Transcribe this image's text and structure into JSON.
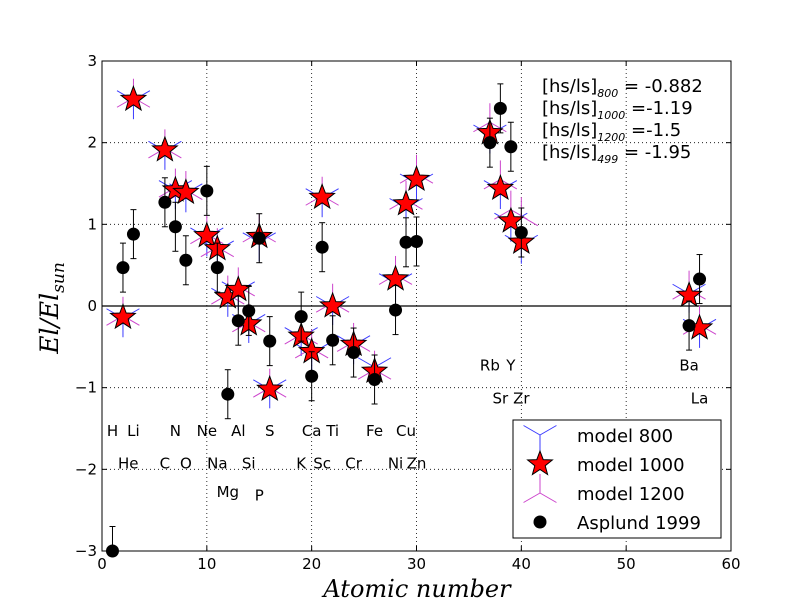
{
  "chart_data": {
    "type": "scatter",
    "xlabel": "Atomic number",
    "ylabel": "El/El_sun",
    "xlim": [
      0,
      60
    ],
    "ylim": [
      -3,
      3
    ],
    "xticks": [
      0,
      10,
      20,
      30,
      40,
      50,
      60
    ],
    "yticks": [
      -3,
      -2,
      -1,
      0,
      1,
      2,
      3
    ],
    "grid": true,
    "horizontal_line_y": 0,
    "annotations": [
      {
        "base": "[hs/ls]",
        "sub": "800",
        "value": "= -0.882"
      },
      {
        "base": "[hs/ls]",
        "sub": "1000",
        "value": "=-1.19"
      },
      {
        "base": "[hs/ls]",
        "sub": "1200",
        "value": "=-1.5"
      },
      {
        "base": "[hs/ls]",
        "sub": "499",
        "value": "= -1.95"
      }
    ],
    "element_labels": [
      {
        "t": "H",
        "x": 1,
        "y": -1.53
      },
      {
        "t": "Li",
        "x": 3,
        "y": -1.53
      },
      {
        "t": "N",
        "x": 7,
        "y": -1.53
      },
      {
        "t": "Ne",
        "x": 10,
        "y": -1.53
      },
      {
        "t": "Al",
        "x": 13,
        "y": -1.53
      },
      {
        "t": "S",
        "x": 16,
        "y": -1.53
      },
      {
        "t": "Ca",
        "x": 20,
        "y": -1.53
      },
      {
        "t": "Ti",
        "x": 22,
        "y": -1.53
      },
      {
        "t": "Fe",
        "x": 26,
        "y": -1.53
      },
      {
        "t": "Cu",
        "x": 29,
        "y": -1.53
      },
      {
        "t": "He",
        "x": 2.5,
        "y": -1.93
      },
      {
        "t": "C",
        "x": 6,
        "y": -1.93
      },
      {
        "t": "O",
        "x": 8,
        "y": -1.93
      },
      {
        "t": "Na",
        "x": 11,
        "y": -1.93
      },
      {
        "t": "Si",
        "x": 14,
        "y": -1.93
      },
      {
        "t": "K",
        "x": 19,
        "y": -1.93
      },
      {
        "t": "Sc",
        "x": 21,
        "y": -1.93
      },
      {
        "t": "Cr",
        "x": 24,
        "y": -1.93
      },
      {
        "t": "Ni",
        "x": 28,
        "y": -1.93
      },
      {
        "t": "Zn",
        "x": 30,
        "y": -1.93
      },
      {
        "t": "Mg",
        "x": 12,
        "y": -2.28
      },
      {
        "t": "P",
        "x": 15,
        "y": -2.32
      },
      {
        "t": "Rb",
        "x": 37,
        "y": -0.73
      },
      {
        "t": "Y",
        "x": 39,
        "y": -0.73
      },
      {
        "t": "Sr",
        "x": 38,
        "y": -1.13
      },
      {
        "t": "Zr",
        "x": 40,
        "y": -1.13
      },
      {
        "t": "Ba",
        "x": 56,
        "y": -0.73
      },
      {
        "t": "La",
        "x": 57,
        "y": -1.13
      }
    ],
    "series": [
      {
        "name": "model 800",
        "marker": "tri-down",
        "color": "#3b3bff",
        "points": [
          [
            2,
            -0.15
          ],
          [
            3,
            2.52
          ],
          [
            6,
            1.9
          ],
          [
            7,
            1.42
          ],
          [
            8,
            1.38
          ],
          [
            10,
            0.84
          ],
          [
            11,
            0.68
          ],
          [
            12,
            0.1
          ],
          [
            13,
            0.18
          ],
          [
            14,
            -0.22
          ],
          [
            15,
            0.78
          ],
          [
            16,
            -1.02
          ],
          [
            19,
            -0.38
          ],
          [
            20,
            -0.58
          ],
          [
            21,
            1.32
          ],
          [
            22,
            0.0
          ],
          [
            24,
            -0.48
          ],
          [
            26,
            -0.75
          ],
          [
            28,
            0.28
          ],
          [
            29,
            1.2
          ],
          [
            30,
            1.5
          ],
          [
            37,
            2.1
          ],
          [
            38,
            1.42
          ],
          [
            39,
            1.02
          ],
          [
            40,
            0.75
          ],
          [
            56,
            0.15
          ],
          [
            57,
            -0.28
          ]
        ]
      },
      {
        "name": "model 1000",
        "marker": "star",
        "color": "#ff0000",
        "points": [
          [
            2,
            -0.14
          ],
          [
            3,
            2.53
          ],
          [
            6,
            1.91
          ],
          [
            7,
            1.42
          ],
          [
            8,
            1.39
          ],
          [
            10,
            0.86
          ],
          [
            11,
            0.7
          ],
          [
            12,
            0.11
          ],
          [
            13,
            0.2
          ],
          [
            14,
            -0.22
          ],
          [
            15,
            0.85
          ],
          [
            16,
            -1.02
          ],
          [
            19,
            -0.37
          ],
          [
            20,
            -0.56
          ],
          [
            21,
            1.33
          ],
          [
            22,
            0.0
          ],
          [
            24,
            -0.47
          ],
          [
            26,
            -0.8
          ],
          [
            28,
            0.33
          ],
          [
            29,
            1.25
          ],
          [
            30,
            1.55
          ],
          [
            37,
            2.12
          ],
          [
            38,
            1.44
          ],
          [
            39,
            1.04
          ],
          [
            40,
            0.78
          ],
          [
            56,
            0.13
          ],
          [
            57,
            -0.27
          ]
        ]
      },
      {
        "name": "model 1200",
        "marker": "tri-up",
        "color": "#cc44cc",
        "points": [
          [
            2,
            -0.12
          ],
          [
            3,
            2.55
          ],
          [
            6,
            1.93
          ],
          [
            7,
            1.45
          ],
          [
            8,
            1.42
          ],
          [
            10,
            0.88
          ],
          [
            11,
            0.72
          ],
          [
            12,
            0.14
          ],
          [
            13,
            0.24
          ],
          [
            14,
            -0.2
          ],
          [
            15,
            0.9
          ],
          [
            16,
            -1.0
          ],
          [
            19,
            -0.35
          ],
          [
            20,
            -0.52
          ],
          [
            21,
            1.35
          ],
          [
            22,
            0.04
          ],
          [
            24,
            -0.44
          ],
          [
            26,
            -0.78
          ],
          [
            28,
            0.38
          ],
          [
            29,
            1.3
          ],
          [
            30,
            1.62
          ],
          [
            37,
            2.25
          ],
          [
            38,
            1.55
          ],
          [
            39,
            1.18
          ],
          [
            40,
            1.1
          ],
          [
            56,
            0.2
          ],
          [
            57,
            -0.23
          ]
        ]
      },
      {
        "name": "Asplund 1999",
        "marker": "circle",
        "color": "#000000",
        "points": [
          [
            1,
            -3.0,
            0.3
          ],
          [
            2,
            0.47,
            0.3
          ],
          [
            3,
            0.88,
            0.3
          ],
          [
            6,
            1.27,
            0.3
          ],
          [
            7,
            0.97,
            0.3
          ],
          [
            8,
            0.56,
            0.3
          ],
          [
            10,
            1.41,
            0.3
          ],
          [
            11,
            0.47,
            0.3
          ],
          [
            12,
            -1.08,
            0.3
          ],
          [
            13,
            -0.18,
            0.3
          ],
          [
            14,
            -0.06,
            0.3
          ],
          [
            15,
            0.83,
            0.3
          ],
          [
            16,
            -0.43,
            0.3
          ],
          [
            19,
            -0.13,
            0.3
          ],
          [
            20,
            -0.86,
            0.3
          ],
          [
            21,
            0.72,
            0.3
          ],
          [
            22,
            -0.42,
            0.3
          ],
          [
            24,
            -0.57,
            0.3
          ],
          [
            26,
            -0.9,
            0.3
          ],
          [
            28,
            -0.05,
            0.3
          ],
          [
            29,
            0.78,
            0.3
          ],
          [
            30,
            0.79,
            0.3
          ],
          [
            37,
            2.0,
            0.3
          ],
          [
            38,
            2.42,
            0.3
          ],
          [
            39,
            1.95,
            0.3
          ],
          [
            40,
            0.9,
            0.3
          ],
          [
            56,
            -0.24,
            0.3
          ],
          [
            57,
            0.33,
            0.3
          ]
        ]
      }
    ]
  },
  "legend": {
    "items": [
      "model 800",
      "model 1000",
      "model 1200",
      "Asplund 1999"
    ]
  },
  "axis_titles": {
    "x": "Atomic number",
    "y_main": "El/El",
    "y_sub": "sun"
  }
}
